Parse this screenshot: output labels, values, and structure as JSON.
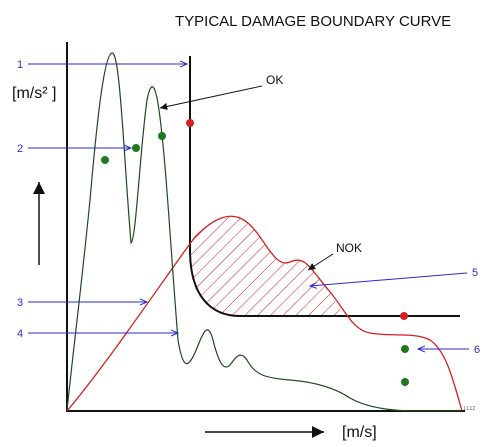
{
  "title": "TYPICAL DAMAGE BOUNDARY CURVE",
  "y_axis_unit": "[m/s² ]",
  "x_axis_unit": "[m/s]",
  "callouts": {
    "ok": "OK",
    "nok": "NOK"
  },
  "markers": [
    "1",
    "2",
    "3",
    "4",
    "5",
    "6"
  ],
  "corner_code": "LL12",
  "colors": {
    "boundary": "#000000",
    "velocity_curve": "#d42020",
    "acceleration_curve": "#1e4a1e",
    "ok_point": "#1f7a1f",
    "nok_point": "#d42020",
    "marker_arrows": "#2a2ad0",
    "hatch": "#d42020"
  },
  "icons": {
    "y_direction": "arrow-up-icon",
    "x_direction": "arrow-right-icon"
  }
}
